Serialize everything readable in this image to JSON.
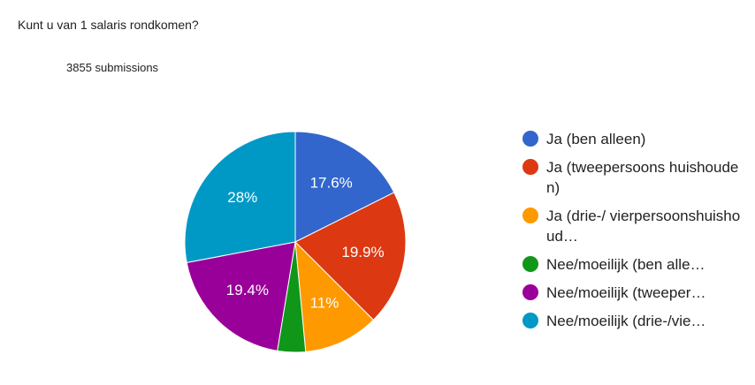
{
  "chart_data": {
    "type": "pie",
    "title": "Kunt u van 1 salaris rondkomen?",
    "subtitle": "3855 submissions",
    "categories": [
      "Ja (ben alleen)",
      "Ja (tweepersoons huishouden)",
      "Ja (drie-/ vierpersoonshuishoud…",
      "Nee/moeilijk (ben alle…",
      "Nee/moeilijk (tweeper…",
      "Nee/moeilijk (drie-/vie…"
    ],
    "values": [
      17.6,
      19.9,
      11,
      4.1,
      19.4,
      28
    ],
    "value_labels": [
      "17.6%",
      "19.9%",
      "11%",
      null,
      "19.4%",
      "28%"
    ],
    "colors": [
      "#3366cc",
      "#dc3912",
      "#ff9900",
      "#109618",
      "#990099",
      "#0099c6"
    ],
    "legend": "right"
  }
}
